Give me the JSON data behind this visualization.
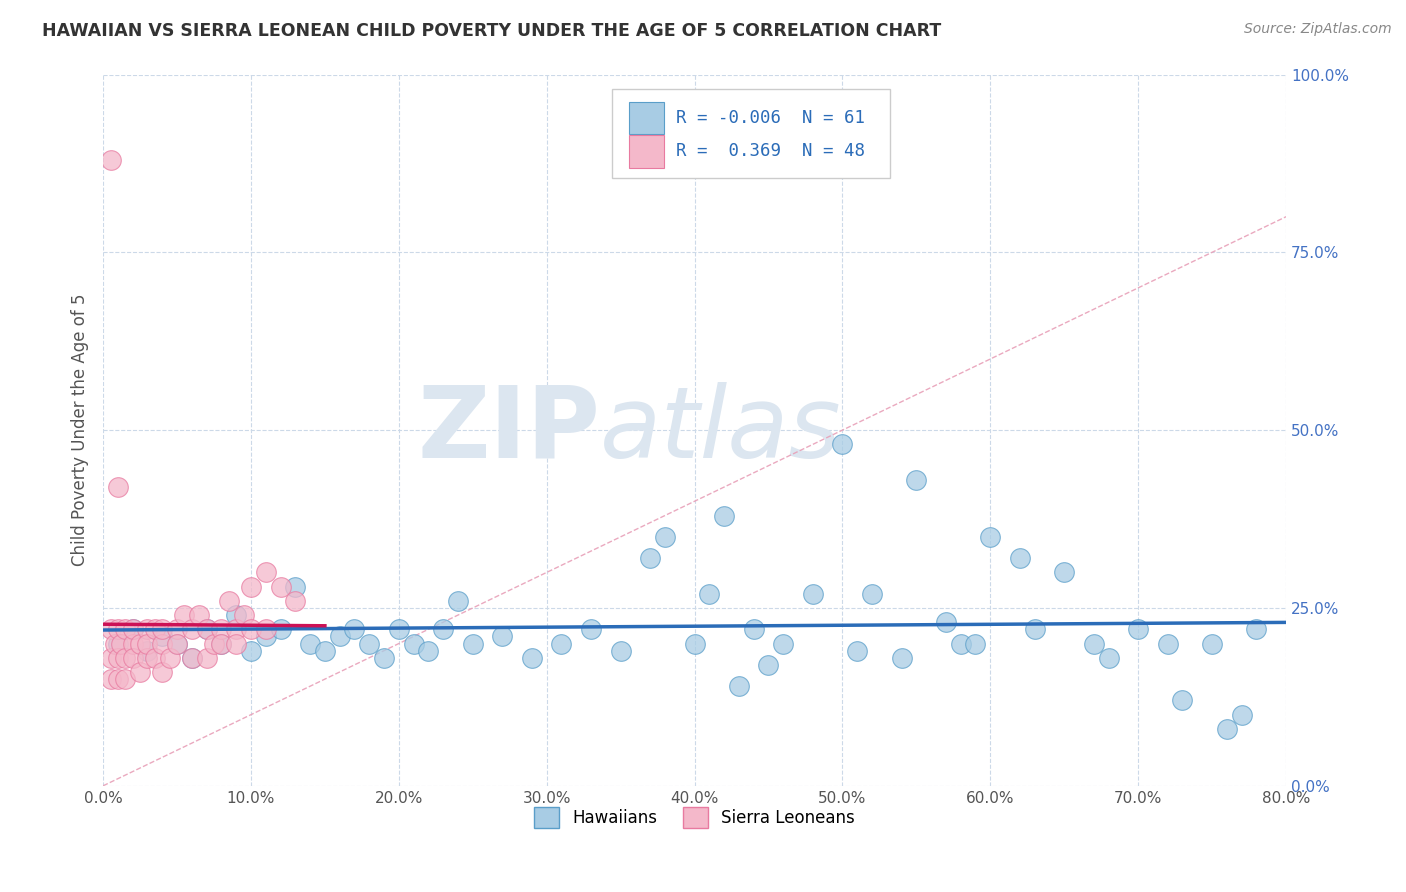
{
  "title": "HAWAIIAN VS SIERRA LEONEAN CHILD POVERTY UNDER THE AGE OF 5 CORRELATION CHART",
  "source_text": "Source: ZipAtlas.com",
  "ylabel": "Child Poverty Under the Age of 5",
  "xlim": [
    0.0,
    0.8
  ],
  "ylim": [
    0.0,
    1.0
  ],
  "xticks": [
    0.0,
    0.1,
    0.2,
    0.3,
    0.4,
    0.5,
    0.6,
    0.7,
    0.8
  ],
  "xticklabels": [
    "0.0%",
    "10.0%",
    "20.0%",
    "30.0%",
    "40.0%",
    "50.0%",
    "60.0%",
    "70.0%",
    "80.0%"
  ],
  "yticks": [
    0.0,
    0.25,
    0.5,
    0.75,
    1.0
  ],
  "yticklabels": [
    "0.0%",
    "25.0%",
    "50.0%",
    "75.0%",
    "100.0%"
  ],
  "hawaiians_R": "-0.006",
  "hawaiians_N": "61",
  "sierraleoneans_R": "0.369",
  "sierraleoneans_N": "48",
  "blue_color": "#a8cce4",
  "pink_color": "#f4b8ca",
  "blue_edge": "#5a9ec9",
  "pink_edge": "#e87aa0",
  "blue_line_color": "#2b6cb8",
  "pink_line_color": "#cc1155",
  "diag_line_color": "#e8a0b8",
  "watermark_color": "#dce6f0",
  "title_color": "#333333",
  "axis_label_color": "#4472c4",
  "hawaiians_x": [
    0.01,
    0.02,
    0.03,
    0.04,
    0.05,
    0.06,
    0.07,
    0.08,
    0.09,
    0.1,
    0.11,
    0.12,
    0.13,
    0.14,
    0.15,
    0.16,
    0.17,
    0.18,
    0.19,
    0.2,
    0.21,
    0.22,
    0.23,
    0.24,
    0.25,
    0.27,
    0.29,
    0.31,
    0.33,
    0.35,
    0.37,
    0.38,
    0.4,
    0.41,
    0.42,
    0.44,
    0.45,
    0.46,
    0.48,
    0.5,
    0.51,
    0.52,
    0.54,
    0.55,
    0.57,
    0.58,
    0.6,
    0.62,
    0.63,
    0.65,
    0.67,
    0.68,
    0.7,
    0.72,
    0.73,
    0.75,
    0.76,
    0.77,
    0.78,
    0.59,
    0.43
  ],
  "hawaiians_y": [
    0.2,
    0.22,
    0.19,
    0.21,
    0.2,
    0.18,
    0.22,
    0.2,
    0.24,
    0.19,
    0.21,
    0.22,
    0.28,
    0.2,
    0.19,
    0.21,
    0.22,
    0.2,
    0.18,
    0.22,
    0.2,
    0.19,
    0.22,
    0.26,
    0.2,
    0.21,
    0.18,
    0.2,
    0.22,
    0.19,
    0.32,
    0.35,
    0.2,
    0.27,
    0.38,
    0.22,
    0.17,
    0.2,
    0.27,
    0.48,
    0.19,
    0.27,
    0.18,
    0.43,
    0.23,
    0.2,
    0.35,
    0.32,
    0.22,
    0.3,
    0.2,
    0.18,
    0.22,
    0.2,
    0.12,
    0.2,
    0.08,
    0.1,
    0.22,
    0.2,
    0.14
  ],
  "sierraleoneans_x": [
    0.005,
    0.005,
    0.005,
    0.008,
    0.01,
    0.01,
    0.01,
    0.012,
    0.015,
    0.015,
    0.015,
    0.02,
    0.02,
    0.02,
    0.025,
    0.025,
    0.03,
    0.03,
    0.03,
    0.035,
    0.035,
    0.04,
    0.04,
    0.04,
    0.045,
    0.05,
    0.05,
    0.055,
    0.06,
    0.06,
    0.065,
    0.07,
    0.07,
    0.075,
    0.08,
    0.08,
    0.085,
    0.09,
    0.09,
    0.095,
    0.1,
    0.1,
    0.11,
    0.11,
    0.12,
    0.13,
    0.005,
    0.01
  ],
  "sierraleoneans_y": [
    0.22,
    0.18,
    0.15,
    0.2,
    0.18,
    0.22,
    0.15,
    0.2,
    0.18,
    0.22,
    0.15,
    0.2,
    0.18,
    0.22,
    0.2,
    0.16,
    0.22,
    0.18,
    0.2,
    0.22,
    0.18,
    0.2,
    0.22,
    0.16,
    0.18,
    0.22,
    0.2,
    0.24,
    0.22,
    0.18,
    0.24,
    0.22,
    0.18,
    0.2,
    0.22,
    0.2,
    0.26,
    0.22,
    0.2,
    0.24,
    0.28,
    0.22,
    0.3,
    0.22,
    0.28,
    0.26,
    0.88,
    0.42
  ]
}
